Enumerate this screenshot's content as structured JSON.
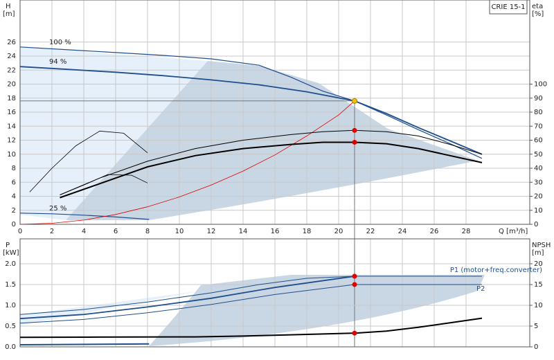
{
  "chart_data": [
    {
      "type": "line",
      "model": "CRIE 15-1",
      "y_label": "H",
      "y_unit": "[m]",
      "y2_label": "eta",
      "y2_unit": "[%]",
      "x_label": "Q [m³/h]",
      "xlim": [
        0,
        32
      ],
      "ylim": [
        0,
        32
      ],
      "y2lim": [
        0,
        160
      ],
      "xticks": [
        0,
        2,
        4,
        6,
        8,
        10,
        12,
        14,
        16,
        18,
        20,
        22,
        24,
        26,
        28
      ],
      "yticks": [
        0,
        2,
        4,
        6,
        8,
        10,
        12,
        14,
        16,
        18,
        20,
        22,
        24,
        26
      ],
      "y2ticks": [
        0,
        10,
        20,
        30,
        40,
        50,
        60,
        70,
        80,
        90,
        100
      ],
      "grid": true,
      "show_x_tick_labels": true,
      "series": [
        {
          "name": "100 %",
          "color": "#1f4e8c",
          "line_width": 1.2,
          "x": [
            0,
            3,
            6,
            9,
            12,
            15,
            17,
            19,
            21,
            23,
            25,
            27,
            29
          ],
          "values": [
            25.3,
            24.9,
            24.5,
            24.1,
            23.6,
            22.7,
            21,
            19,
            17.6,
            15.6,
            13.5,
            11.5,
            9.4
          ]
        },
        {
          "name": "94 %",
          "color": "#1f4e8c",
          "line_width": 1.8,
          "x": [
            0,
            3,
            6,
            9,
            12,
            15,
            18,
            21,
            23,
            25,
            27,
            29
          ],
          "values": [
            22.5,
            22.1,
            21.7,
            21.2,
            20.6,
            19.9,
            18.9,
            17.6,
            15.8,
            13.8,
            11.9,
            10
          ]
        },
        {
          "name": "25 %",
          "color": "#1f4e8c",
          "line_width": 1.2,
          "x": [
            0,
            2,
            4,
            6,
            8.1
          ],
          "values": [
            1.6,
            1.5,
            1.3,
            1.05,
            0.7
          ]
        },
        {
          "color": "#e00000",
          "line_width": 0.8,
          "x": [
            0,
            2,
            4,
            6,
            8,
            10,
            12,
            14,
            16,
            18,
            20,
            21
          ],
          "values": [
            0,
            0.15,
            0.6,
            1.4,
            2.5,
            3.9,
            5.6,
            7.6,
            9.9,
            12.6,
            15.6,
            17.6
          ]
        },
        {
          "color": "#000000",
          "line_width": 1,
          "axis": "y2",
          "x": [
            2.5,
            5,
            8,
            11,
            14,
            17,
            19,
            21,
            23,
            25,
            27,
            29
          ],
          "values": [
            21,
            33,
            45,
            54,
            60,
            64,
            66,
            67,
            66,
            63,
            57,
            50
          ]
        },
        {
          "color": "#000000",
          "line_width": 2,
          "axis": "y2",
          "x": [
            2.5,
            5,
            8,
            11,
            14,
            17,
            19,
            21,
            23,
            25,
            27,
            29
          ],
          "values": [
            19,
            29,
            41,
            49,
            54,
            57,
            58.5,
            58.5,
            57.5,
            54,
            49,
            44
          ]
        },
        {
          "color": "#000000",
          "line_width": 0.8,
          "axis": "y2",
          "x": [
            0.6,
            2,
            3.5,
            5,
            6.5,
            8
          ],
          "values": [
            23,
            40,
            56,
            66.5,
            65,
            51
          ]
        },
        {
          "color": "#000000",
          "line_width": 0.8,
          "axis": "y2",
          "x": [
            2.5,
            4,
            5.5,
            7,
            8
          ],
          "values": [
            21,
            28,
            35.5,
            35,
            29.5
          ]
        },
        {
          "color": "#f5c400",
          "marker": true,
          "crosshair": true,
          "x": [
            21
          ],
          "values": [
            17.6
          ]
        },
        {
          "color": "#e00000",
          "marker": true,
          "axis": "y2",
          "x": [
            21,
            21
          ],
          "values": [
            67,
            58.5
          ]
        }
      ]
    },
    {
      "type": "line",
      "y_label": "P",
      "y_unit": "[kW]",
      "y2_label": "NPSH",
      "y2_unit": "[m]",
      "xlim": [
        0,
        32
      ],
      "ylim": [
        0,
        2.6
      ],
      "y2lim": [
        0,
        26
      ],
      "xticks": [
        0,
        2,
        4,
        6,
        8,
        10,
        12,
        14,
        16,
        18,
        20,
        22,
        24,
        26,
        28
      ],
      "yticks": [
        {
          "value": 0,
          "label": "0.0"
        },
        0.5,
        {
          "value": 1,
          "label": "1.0"
        },
        1.5,
        {
          "value": 2,
          "label": "2.0"
        }
      ],
      "y2ticks": [
        0,
        5,
        10,
        15,
        20
      ],
      "grid": true,
      "show_x_tick_labels": false,
      "series": [
        {
          "name": "P1 (motor+freq.converter)",
          "color": "#1f4e8c",
          "line_width": 1,
          "x": [
            0,
            4,
            8,
            12,
            15,
            18,
            21,
            29
          ],
          "values": [
            0.78,
            0.9,
            1.08,
            1.3,
            1.5,
            1.65,
            1.7,
            1.7
          ]
        },
        {
          "color": "#1f4e8c",
          "line_width": 1.8,
          "x": [
            0,
            4,
            8,
            12,
            16,
            21
          ],
          "values": [
            0.68,
            0.78,
            0.96,
            1.17,
            1.43,
            1.7
          ]
        },
        {
          "name": "P2",
          "color": "#1f4e8c",
          "line_width": 1,
          "x": [
            0,
            4,
            8,
            12,
            16,
            21,
            29
          ],
          "values": [
            0.57,
            0.66,
            0.82,
            1.02,
            1.26,
            1.5,
            1.5
          ]
        },
        {
          "color": "#1f4e8c",
          "line_width": 2,
          "x": [
            0,
            8.1
          ],
          "values": [
            0.05,
            0.07
          ]
        },
        {
          "color": "#000000",
          "line_width": 2,
          "axis": "y2",
          "x": [
            0,
            5,
            11,
            14,
            17,
            21,
            23,
            25,
            27,
            29
          ],
          "values": [
            2.3,
            2.35,
            2.4,
            2.6,
            2.9,
            3.3,
            3.8,
            4.7,
            5.8,
            6.9
          ]
        },
        {
          "color": "#e00000",
          "marker": true,
          "x": [
            21,
            21
          ],
          "values": [
            1.7,
            1.5
          ]
        },
        {
          "color": "#e00000",
          "marker": true,
          "axis": "y2",
          "x": [
            21
          ],
          "values": [
            3.3
          ]
        }
      ]
    }
  ]
}
